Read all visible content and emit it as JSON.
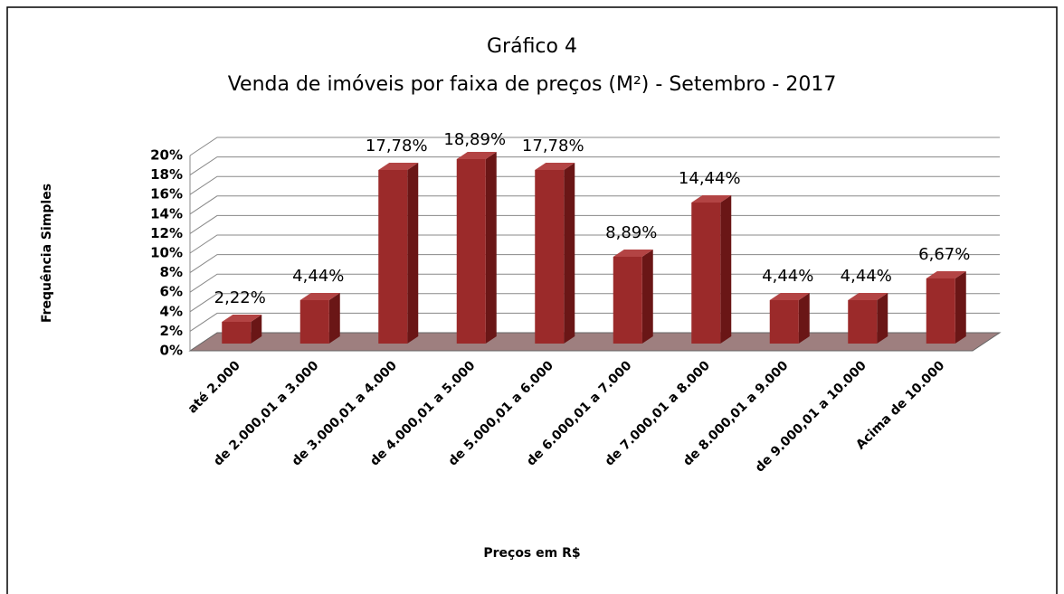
{
  "chart_data": {
    "type": "bar3d",
    "title": "Gráfico 4",
    "subtitle": "Venda de imóveis por faixa de preços (M²) - Setembro - 2017",
    "x_label": "Preços em R$",
    "y_label": "Frequência Simples",
    "categories": [
      "até 2.000",
      "de 2.000,01 a 3.000",
      "de 3.000,01 a 4.000",
      "de 4.000,01 a 5.000",
      "de 5.000,01 a 6.000",
      "de 6.000,01 a 7.000",
      "de 7.000,01 a 8.000",
      "de 8.000,01 a 9.000",
      "de 9.000,01 a 10.000",
      "Acima de 10.000"
    ],
    "values": [
      2.22,
      4.44,
      17.78,
      18.89,
      17.78,
      8.89,
      14.44,
      4.44,
      4.44,
      6.67
    ],
    "value_labels": [
      "2,22%",
      "4,44%",
      "17,78%",
      "18,89%",
      "17,78%",
      "8,89%",
      "14,44%",
      "4,44%",
      "4,44%",
      "6,67%"
    ],
    "color": "#9b2a2a",
    "ylim": [
      0,
      20
    ],
    "yticks": [
      {
        "value": 0,
        "label": "0%"
      },
      {
        "value": 2,
        "label": "2%"
      },
      {
        "value": 4,
        "label": "4%"
      },
      {
        "value": 6,
        "label": "6%"
      },
      {
        "value": 8,
        "label": "8%"
      },
      {
        "value": 10,
        "label": "10%"
      },
      {
        "value": 12,
        "label": "12%"
      },
      {
        "value": 14,
        "label": "14%"
      },
      {
        "value": 16,
        "label": "16%"
      },
      {
        "value": 18,
        "label": "18%"
      },
      {
        "value": 20,
        "label": "20%"
      }
    ],
    "grid": true
  }
}
